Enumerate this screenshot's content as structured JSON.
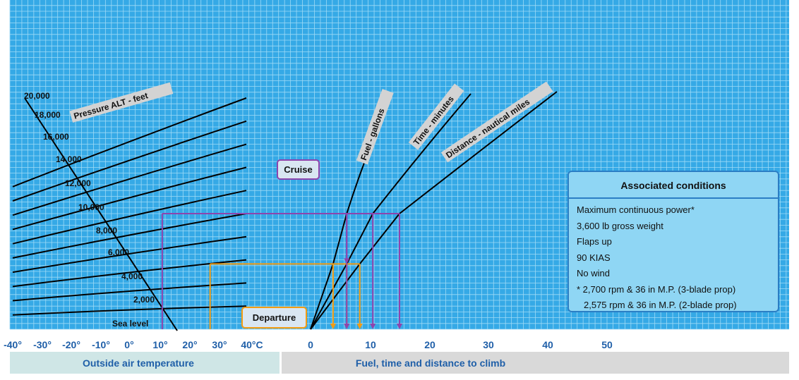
{
  "colors": {
    "background": "#35a9e6",
    "grid": "#9edaf6",
    "curve": "#000000",
    "cruise": "#8e44ad",
    "departure": "#f39c12",
    "conditions_fill": "#8fd6f4",
    "conditions_border": "#2b7ec4",
    "axis_text": "#1f5fa8",
    "temp_band": "#cfe6e6",
    "fuel_band": "#d9d9d9"
  },
  "chart_data": {
    "type": "line",
    "title": "",
    "subtitle": "",
    "grid": true,
    "left_panel": {
      "xlabel": "Outside air temperature",
      "x_ticks": [
        "-40°",
        "-30°",
        "-20°",
        "-10°",
        "0°",
        "10°",
        "20°",
        "30°",
        "40°C"
      ],
      "xlim": [
        -40,
        40
      ],
      "curve_label": "Pressure ALT - feet",
      "altitude_labels": [
        "Sea level",
        "2,000",
        "4,000",
        "6,000",
        "8,000",
        "10,000",
        "12,000",
        "14,000",
        "16,000",
        "18,000",
        "20,000"
      ],
      "altitudes": [
        0,
        2000,
        4000,
        6000,
        8000,
        10000,
        12000,
        14000,
        16000,
        18000,
        20000
      ]
    },
    "right_panel": {
      "xlabel": "Fuel, time and distance to climb",
      "x_ticks": [
        "0",
        "10",
        "20",
        "30",
        "40",
        "50"
      ],
      "xlim": [
        0,
        50
      ],
      "series": [
        {
          "name": "Fuel - gallons",
          "x_at_departure": 3.8,
          "x_at_cruise": 6.1
        },
        {
          "name": "Time - minutes",
          "x_at_departure": 6.1,
          "x_at_cruise": 10.5
        },
        {
          "name": "Distance - nautical miles",
          "x_at_departure": 8.3,
          "x_at_cruise": 15.0
        }
      ]
    },
    "annotations": [
      {
        "label": "Cruise",
        "pressure_altitude": 10000,
        "temperature": 10
      },
      {
        "label": "Departure",
        "pressure_altitude": 5650,
        "temperature": 26
      }
    ]
  },
  "conditions": {
    "title": "Associated conditions",
    "items": [
      "Maximum continuous power*",
      "3,600 lb gross weight",
      "Flaps up",
      "90 KIAS",
      "No wind",
      "* 2,700 rpm & 36 in M.P. (3-blade prop)",
      "2,575 rpm & 36 in M.P. (2-blade prop)"
    ]
  }
}
